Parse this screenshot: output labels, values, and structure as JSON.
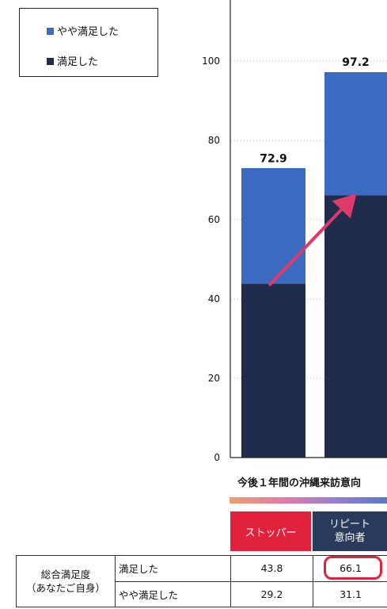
{
  "chart_data": {
    "type": "bar",
    "stacked": true,
    "categories": [
      "ストッパー",
      "リピート意向者"
    ],
    "series": [
      {
        "name": "満足した",
        "values": [
          43.8,
          66.1
        ],
        "color": "#1f2c4c"
      },
      {
        "name": "やや満足した",
        "values": [
          29.2,
          31.1
        ],
        "color": "#3a6bc0"
      }
    ],
    "totals": [
      "72.9",
      "97.2"
    ],
    "yticks": [
      "0",
      "20",
      "40",
      "60",
      "80",
      "100"
    ],
    "ylim": [
      0,
      100
    ],
    "xlabel": "今後１年間の沖縄来訪意向",
    "legend_position": "top-left",
    "grid": "dotted",
    "annotation": "arrow-up-right",
    "arrow_color": "#e03a6a"
  },
  "legend": {
    "items": [
      {
        "label": "やや満足した",
        "color": "#3a6bc0"
      },
      {
        "label": "満足した",
        "color": "#1f2c4c"
      }
    ]
  },
  "headers": {
    "stopper": "ストッパー",
    "repeat_line1": "リピート",
    "repeat_line2": "意向者"
  },
  "table": {
    "group_line1": "総合満足度",
    "group_line2": "（あなたご自身）",
    "rows": [
      {
        "label": "満足した",
        "stopper": "43.8",
        "repeat": "66.1"
      },
      {
        "label": "やや満足した",
        "stopper": "29.2",
        "repeat": "31.1"
      }
    ]
  }
}
